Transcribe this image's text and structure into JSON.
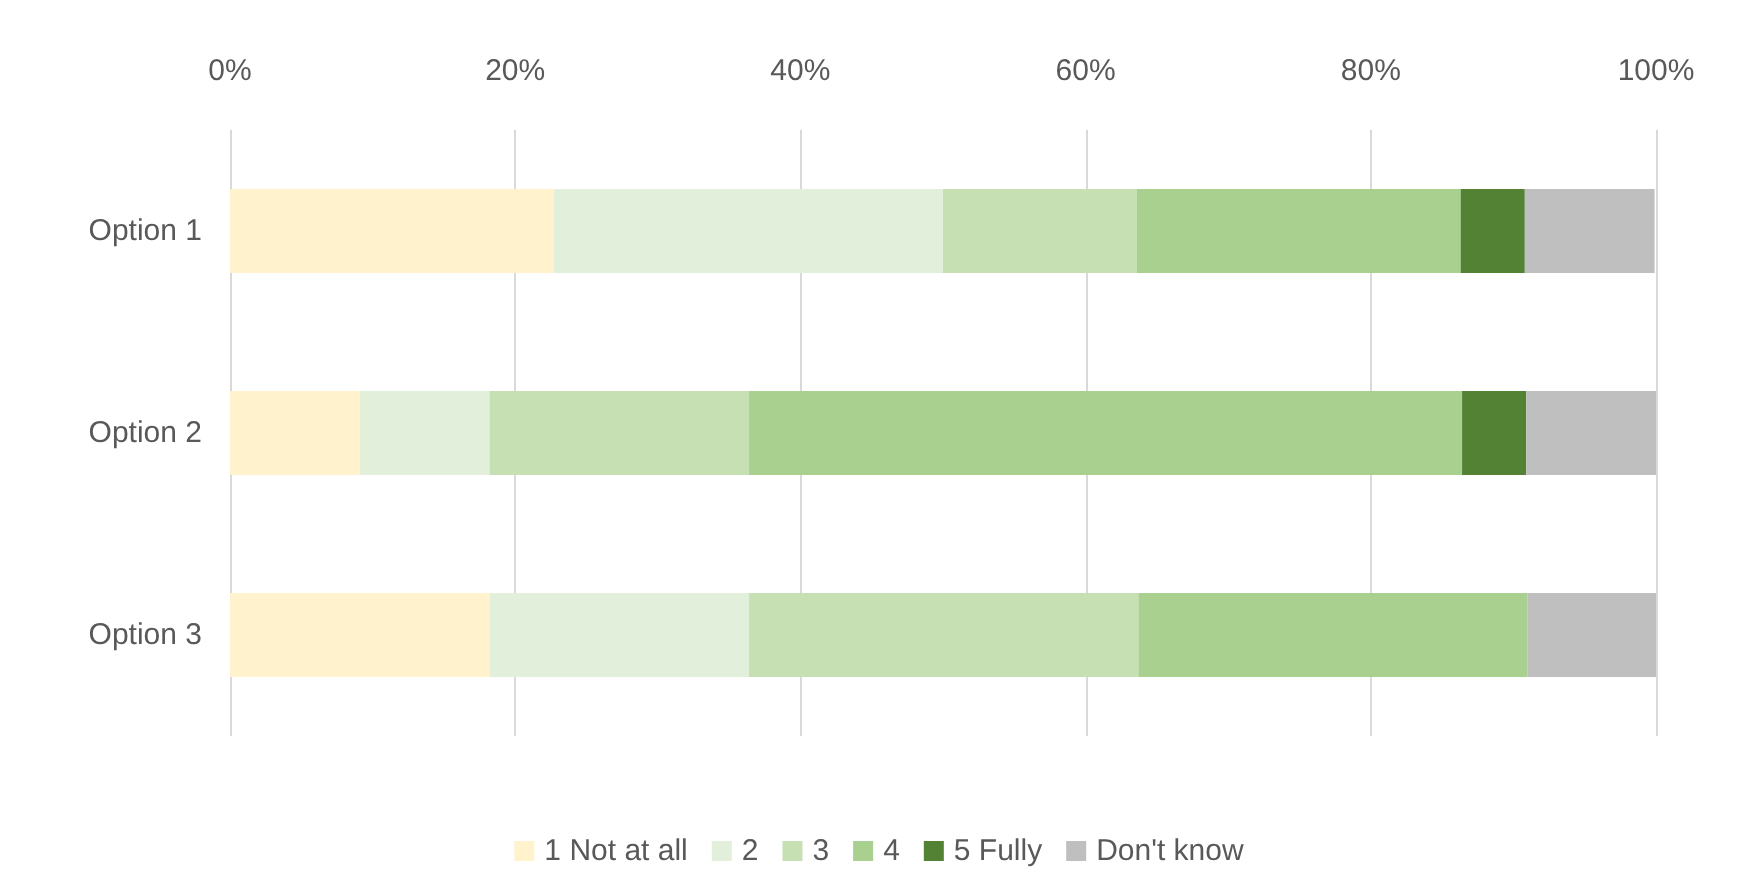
{
  "chart_data": {
    "type": "bar",
    "orientation": "horizontal",
    "stacked": true,
    "categories": [
      "Option 1",
      "Option 2",
      "Option 3"
    ],
    "series": [
      {
        "name": "1 Not at all",
        "color": "#fff2cc",
        "values": [
          22.7,
          9.1,
          18.2
        ]
      },
      {
        "name": "2",
        "color": "#e2efda",
        "values": [
          27.3,
          9.1,
          18.2
        ]
      },
      {
        "name": "3",
        "color": "#c6e0b4",
        "values": [
          13.6,
          18.2,
          27.3
        ]
      },
      {
        "name": "4",
        "color": "#a9d08e",
        "values": [
          22.7,
          50,
          27.3
        ]
      },
      {
        "name": "5 Fully",
        "color": "#548235",
        "values": [
          4.5,
          4.5,
          0
        ]
      },
      {
        "name": "Don't know",
        "color": "#bfbfbf",
        "values": [
          9.1,
          9.1,
          9.1
        ]
      }
    ],
    "xlim": [
      0,
      100
    ],
    "xticks": [
      {
        "value": 0,
        "label": "0%"
      },
      {
        "value": 20,
        "label": "20%"
      },
      {
        "value": 40,
        "label": "40%"
      },
      {
        "value": 60,
        "label": "60%"
      },
      {
        "value": 80,
        "label": "80%"
      },
      {
        "value": 100,
        "label": "100%"
      }
    ],
    "grid": "x",
    "legend": "bottom"
  }
}
